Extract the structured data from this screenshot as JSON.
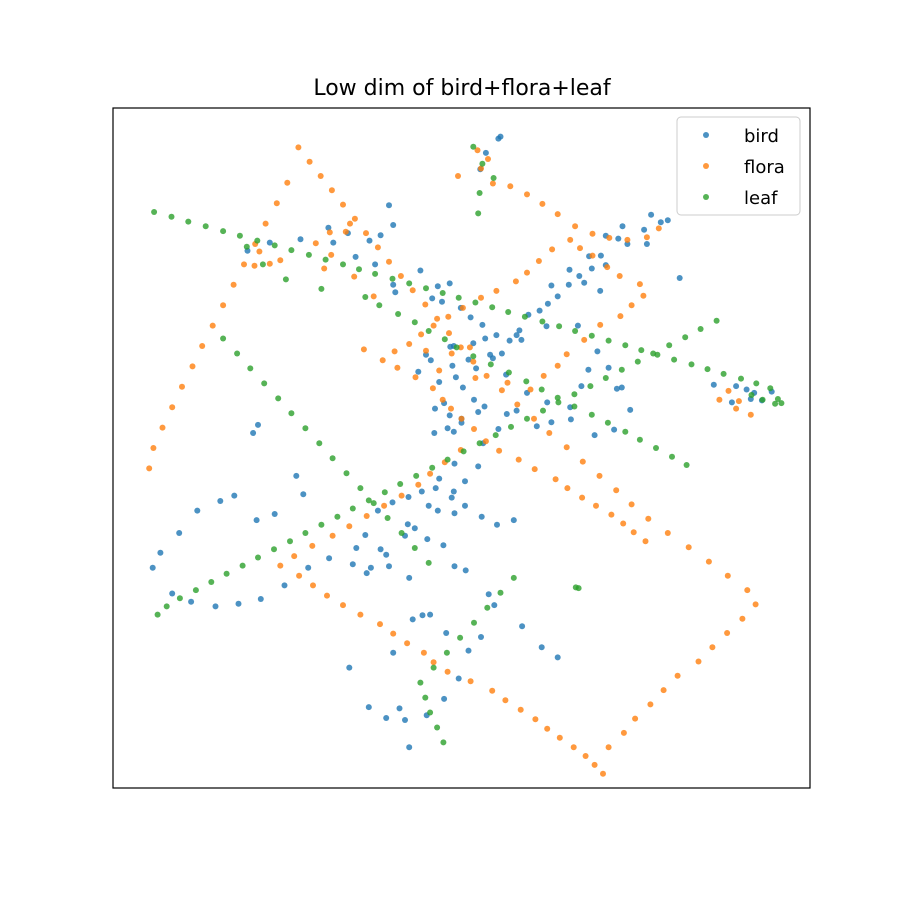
{
  "chart_data": {
    "type": "scatter",
    "title": "Low dim of bird+flora+leaf",
    "xlabel": "",
    "ylabel": "",
    "xlim": [
      0,
      100
    ],
    "ylim": [
      0,
      100
    ],
    "show_ticks": false,
    "grid": false,
    "legend_position": "top-right",
    "series": [
      {
        "name": "bird",
        "color": "#1f77b4",
        "x": [
          55.6,
          55.3,
          53.5,
          52.7,
          39.6,
          40.2,
          19.3,
          22.5,
          26.9,
          31.6,
          30.9,
          33.7,
          36.8,
          38.4,
          34.8,
          37.6,
          40.2,
          44.1,
          40.5,
          45.8,
          46.6,
          48.3,
          47.2,
          49.9,
          51.3,
          48.9,
          53.0,
          57.9,
          59.6,
          61.2,
          62.4,
          63.8,
          62.9,
          65.4,
          66.9,
          68.7,
          70.7,
          68.3,
          72.5,
          73.1,
          70.7,
          76.6,
          77.2,
          78.6,
          79.6,
          76.2,
          73.8,
          70.0,
          65.5,
          67.6,
          69.9,
          55.8,
          54.5,
          52.1,
          48.7,
          45.6,
          44.9,
          43.8,
          46.8,
          50.2,
          51.8,
          53.3,
          56.5,
          52.4,
          50.0,
          48.9,
          53.1,
          55.3,
          57.9,
          49.0,
          46.8,
          48.9,
          50.5,
          52.4,
          49.0,
          46.6,
          45.3,
          42.3,
          38.4,
          36.4,
          39.2,
          41.9,
          43.3,
          45.1,
          47.4,
          49.0,
          50.6,
          53.9,
          52.8,
          49.6,
          47.5,
          45.0,
          42.5,
          41.1,
          40.2,
          43.0,
          45.5,
          47.8,
          51.0,
          56.4,
          59.4,
          62.3,
          65.6,
          67.2,
          68.2,
          71.1,
          73.0,
          74.2,
          71.9,
          69.1,
          65.7,
          62.9,
          60.8,
          89.4,
          90.9,
          92.0,
          93.1,
          94.5,
          91.5,
          88.8,
          86.2,
          81.3,
          72.3,
          69.5,
          66.7,
          62.2,
          58.6,
          54.1,
          51.0,
          49.2,
          48.4,
          51.7,
          53.4,
          55.0,
          56.9,
          58.3,
          26.3,
          27.3,
          23.2,
          20.6,
          17.4,
          15.4,
          12.1,
          9.5,
          6.8,
          5.7,
          8.5,
          11.2,
          14.7,
          18.0,
          21.2,
          24.6,
          28.0,
          31.0,
          34.4,
          37.0,
          39.6,
          42.5,
          44.4,
          33.9,
          36.7,
          39.2,
          41.9,
          54.7,
          58.7,
          61.5,
          63.8,
          57.5,
          55.1,
          52.9,
          50.5,
          48.6,
          46.3,
          44.3,
          42.4,
          40.1,
          38.0,
          36.2,
          34.9,
          46.1,
          48.0,
          50.0,
          48.3,
          46.2,
          47.5,
          20.1,
          20.8
        ],
        "y": [
          95.8,
          95.5,
          93.4,
          91.0,
          85.7,
          82.8,
          79.0,
          80.2,
          80.7,
          80.2,
          82.4,
          81.6,
          80.5,
          81.3,
          78.1,
          77.0,
          74.0,
          76.1,
          72.9,
          72.0,
          73.8,
          74.2,
          71.5,
          70.6,
          69.2,
          65.0,
          68.1,
          66.6,
          69.6,
          70.2,
          71.2,
          72.3,
          73.9,
          74.0,
          75.3,
          76.4,
          76.9,
          78.2,
          80.8,
          82.6,
          81.2,
          80.0,
          84.3,
          83.2,
          83.5,
          82.1,
          80.0,
          78.3,
          76.2,
          74.3,
          73.1,
          63.9,
          63.2,
          61.7,
          62.1,
          62.9,
          63.7,
          61.2,
          59.7,
          58.9,
          57.1,
          56.1,
          55.0,
          55.3,
          53.7,
          52.4,
          50.7,
          52.8,
          55.5,
          47.7,
          45.5,
          43.6,
          45.1,
          47.3,
          40.4,
          40.8,
          41.5,
          38.8,
          35.1,
          31.6,
          34.3,
          37.1,
          38.2,
          36.6,
          35.7,
          32.6,
          32.0,
          28.5,
          22.2,
          16.1,
          13.1,
          10.7,
          6.0,
          11.7,
          19.9,
          24.8,
          25.5,
          22.8,
          20.2,
          60.8,
          58.1,
          56.7,
          56.0,
          59.1,
          61.5,
          61.8,
          58.9,
          55.6,
          52.7,
          51.9,
          54.2,
          53.8,
          53.2,
          59.1,
          58.6,
          58.1,
          57.0,
          58.3,
          57.2,
          56.7,
          59.3,
          75.0,
          58.7,
          64.2,
          68.0,
          67.9,
          65.9,
          63.7,
          63.0,
          60.4,
          64.9,
          65.4,
          66.1,
          66.6,
          65.8,
          67.3,
          45.9,
          43.2,
          40.3,
          39.4,
          43.0,
          42.2,
          40.8,
          37.5,
          34.6,
          32.4,
          28.6,
          27.4,
          26.7,
          27.1,
          27.8,
          29.8,
          32.4,
          33.8,
          32.9,
          32.4,
          32.6,
          30.9,
          25.4,
          17.7,
          11.9,
          10.3,
          10.0,
          26.9,
          23.8,
          20.7,
          19.2,
          39.4,
          38.7,
          39.9,
          41.5,
          42.7,
          44.1,
          43.6,
          42.8,
          42.0,
          40.8,
          37.2,
          35.3,
          52.2,
          52.9,
          54.3,
          54.8,
          55.8,
          56.6,
          52.2,
          53.4
        ]
      },
      {
        "name": "flora",
        "color": "#ff7f0e",
        "x": [
          52.3,
          53.8,
          52.8,
          49.5,
          34.0,
          33.4,
          31.1,
          29.1,
          31.3,
          30.3,
          34.6,
          37.4,
          21.0,
          20.3,
          22.5,
          24.0,
          36.0,
          44.9,
          51.2,
          48.6,
          46.8,
          52.0,
          56.6,
          59.9,
          61.8,
          63.8,
          65.1,
          67.6,
          69.9,
          72.8,
          74.4,
          76.1,
          75.6,
          72.7,
          70.9,
          68.8,
          67.0,
          65.6,
          63.0,
          61.1,
          59.4,
          57.8,
          55.0,
          52.8,
          50.2,
          48.1,
          46.0,
          44.2,
          42.5,
          40.4,
          38.7,
          40.8,
          43.4,
          45.9,
          47.3,
          48.5,
          50.0,
          51.8,
          53.5,
          55.4,
          58.2,
          60.5,
          63.5,
          65.2,
          67.3,
          69.3,
          71.5,
          73.2,
          74.7,
          76.4,
          87.0,
          88.3,
          89.8,
          89.4,
          91.5,
          78.3,
          76.6,
          73.8,
          71.2,
          68.8,
          66.3,
          63.8,
          61.6,
          59.4,
          57.0,
          54.5,
          49.9,
          47.6,
          45.5,
          43.8,
          41.4,
          38.9,
          36.4,
          33.9,
          31.5,
          28.6,
          26.0,
          24.0,
          26.7,
          28.7,
          30.7,
          33.0,
          35.5,
          38.3,
          40.2,
          42.2,
          44.6,
          46.0,
          48.0,
          51.3,
          54.4,
          56.3,
          58.5,
          60.6,
          62.3,
          64.1,
          66.1,
          67.8,
          69.1,
          70.3,
          71.1,
          73.3,
          74.9,
          77.1,
          79.0,
          81.0,
          84.0,
          86.0,
          88.1,
          90.3,
          92.2,
          91.0,
          88.2,
          85.5,
          82.6,
          79.6,
          76.8,
          74.4,
          72.2,
          69.8,
          67.4,
          65.1,
          62.6,
          60.4,
          58.0,
          55.8,
          53.6,
          51.7,
          49.9,
          48.2,
          46.5,
          44.8,
          43.0,
          41.3,
          39.6,
          38.0,
          36.3,
          34.7,
          33.0,
          31.4,
          29.8,
          28.2,
          26.6,
          25.0,
          23.5,
          21.9,
          20.4,
          18.8,
          17.3,
          15.8,
          14.3,
          12.8,
          11.4,
          9.9,
          8.5,
          7.1,
          5.8,
          5.2
        ],
        "y": [
          93.8,
          92.5,
          91.1,
          90.0,
          83.0,
          81.8,
          81.7,
          80.1,
          78.4,
          76.4,
          75.2,
          72.3,
          78.9,
          76.8,
          77.1,
          77.6,
          64.5,
          64.3,
          64.8,
          63.9,
          61.4,
          60.3,
          59.6,
          58.6,
          60.6,
          62.1,
          63.8,
          65.9,
          68.1,
          69.4,
          71.0,
          72.4,
          74.1,
          75.3,
          76.6,
          78.3,
          79.4,
          80.6,
          79.2,
          77.5,
          75.8,
          74.5,
          73.1,
          72.1,
          70.6,
          69.3,
          68.0,
          66.7,
          65.3,
          64.2,
          62.9,
          61.8,
          60.4,
          58.8,
          57.1,
          55.8,
          54.3,
          52.8,
          51.0,
          49.6,
          48.3,
          46.9,
          45.4,
          44.1,
          42.7,
          41.5,
          40.2,
          38.9,
          37.6,
          36.3,
          57.1,
          58.4,
          56.9,
          55.8,
          54.9,
          82.3,
          81.0,
          80.6,
          80.9,
          81.5,
          82.6,
          84.4,
          85.9,
          87.3,
          88.5,
          88.9,
          49.7,
          47.9,
          46.2,
          44.6,
          43.0,
          41.5,
          40.0,
          38.5,
          37.1,
          35.6,
          34.1,
          32.7,
          31.2,
          29.8,
          28.3,
          26.9,
          25.5,
          24.1,
          22.7,
          21.3,
          19.9,
          18.5,
          17.1,
          15.7,
          14.3,
          12.9,
          11.5,
          10.1,
          8.7,
          7.4,
          6.0,
          4.7,
          3.4,
          2.1,
          6.0,
          8.1,
          10.2,
          12.3,
          14.4,
          16.5,
          18.6,
          20.7,
          22.8,
          24.9,
          27.0,
          29.1,
          31.2,
          33.3,
          35.4,
          37.5,
          39.6,
          41.7,
          43.8,
          45.9,
          48.0,
          50.1,
          52.2,
          54.3,
          56.4,
          58.5,
          60.6,
          62.7,
          64.8,
          66.9,
          69.0,
          71.1,
          73.2,
          75.3,
          77.4,
          79.5,
          81.6,
          83.7,
          85.8,
          87.9,
          90.0,
          92.1,
          94.2,
          89.0,
          86.0,
          83.0,
          80.0,
          77.0,
          74.0,
          71.0,
          68.0,
          65.0,
          62.0,
          59.0,
          56.0,
          53.0,
          50.0,
          47.0
        ]
      },
      {
        "name": "leaf",
        "color": "#2ca02c",
        "x": [
          51.7,
          53.0,
          54.6,
          52.6,
          52.4,
          19.2,
          21.5,
          24.8,
          29.9,
          36.2,
          38.2,
          40.9,
          43.3,
          45.3,
          47.6,
          49.3,
          51.7,
          54.2,
          56.8,
          59.3,
          61.5,
          63.8,
          66.2,
          68.7,
          71.0,
          73.5,
          75.6,
          77.9,
          80.2,
          82.3,
          91.6,
          93.2,
          95.0,
          95.4,
          95.9,
          94.3,
          92.3,
          90.1,
          87.6,
          85.3,
          83.0,
          80.5,
          78.1,
          75.8,
          73.5,
          71.1,
          68.7,
          66.3,
          64.0,
          61.6,
          59.1,
          56.7,
          54.4,
          52.0,
          49.6,
          47.3,
          44.9,
          42.5,
          40.1,
          37.6,
          35.3,
          33.0,
          30.5,
          28.1,
          25.6,
          23.2,
          20.7,
          18.2,
          15.8,
          13.3,
          10.8,
          8.4,
          5.9,
          6.4,
          7.7,
          9.6,
          11.9,
          14.1,
          16.3,
          18.6,
          20.8,
          23.1,
          25.4,
          27.6,
          29.9,
          32.2,
          34.4,
          36.7,
          39.0,
          41.2,
          43.5,
          45.8,
          48.0,
          50.3,
          52.6,
          54.9,
          57.1,
          59.4,
          61.7,
          63.9,
          66.2,
          68.5,
          70.7,
          73.0,
          75.3,
          77.5,
          79.8,
          82.1,
          84.3,
          86.6,
          66.8,
          66.4,
          47.4,
          46.5,
          45.5,
          44.8,
          44.1,
          46.0,
          47.9,
          49.8,
          51.8,
          53.7,
          55.6,
          57.5,
          45.3,
          43.3,
          41.4,
          39.4,
          37.4,
          35.5,
          33.5,
          31.5,
          29.6,
          27.6,
          25.6,
          23.7,
          21.7,
          19.7,
          17.8,
          15.8
        ],
        "y": [
          94.3,
          91.8,
          89.7,
          87.5,
          84.5,
          79.6,
          77.0,
          74.8,
          73.4,
          72.2,
          71.0,
          69.7,
          68.5,
          67.2,
          66.0,
          64.8,
          63.5,
          62.3,
          61.1,
          59.8,
          58.6,
          57.4,
          56.1,
          54.9,
          53.7,
          52.4,
          51.2,
          50.0,
          48.7,
          47.5,
          57.8,
          57.1,
          56.5,
          57.2,
          56.6,
          58.8,
          59.5,
          60.2,
          60.9,
          61.6,
          62.3,
          63.0,
          63.7,
          64.4,
          65.1,
          65.8,
          66.5,
          67.2,
          67.9,
          68.6,
          69.3,
          70.0,
          70.7,
          71.4,
          72.1,
          72.8,
          73.5,
          74.2,
          74.9,
          75.6,
          76.3,
          77.0,
          77.7,
          78.4,
          79.1,
          79.8,
          80.5,
          81.2,
          81.9,
          82.6,
          83.3,
          84.0,
          84.7,
          25.5,
          26.7,
          27.9,
          29.1,
          30.3,
          31.5,
          32.7,
          33.9,
          35.1,
          36.3,
          37.5,
          38.7,
          39.9,
          41.1,
          42.3,
          43.5,
          44.7,
          45.9,
          47.1,
          48.3,
          49.5,
          50.7,
          51.9,
          53.1,
          54.3,
          55.5,
          56.7,
          57.9,
          59.1,
          60.3,
          61.5,
          62.7,
          63.9,
          65.1,
          66.3,
          67.5,
          68.7,
          29.4,
          29.5,
          6.7,
          8.9,
          11.1,
          13.3,
          15.5,
          17.7,
          19.9,
          22.1,
          24.3,
          26.5,
          28.7,
          30.9,
          33.1,
          35.3,
          37.5,
          39.7,
          41.9,
          44.1,
          46.3,
          48.5,
          50.7,
          52.9,
          55.1,
          57.3,
          59.5,
          61.7,
          63.9,
          66.1
        ]
      }
    ]
  }
}
